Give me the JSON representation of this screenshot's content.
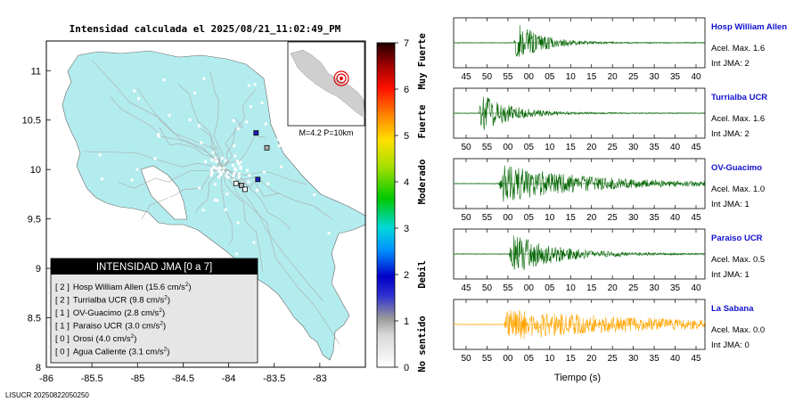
{
  "header": {
    "title": "Intensidad calculada el 2025/08/21_11:02:49_PM",
    "footer_id": "LISUCR 20250822050250"
  },
  "map": {
    "x_ticks": [
      -86,
      -85.5,
      -85,
      -84.5,
      -84,
      -83.5,
      -83
    ],
    "y_ticks": [
      8,
      8.5,
      9,
      9.5,
      10,
      10.5,
      11
    ],
    "x_range": [
      -86,
      -82.5
    ],
    "y_range": [
      8,
      11.3
    ],
    "land_color": "#b3ecee",
    "inset_label": "M=4.2 P=10km"
  },
  "scale": {
    "ticks": [
      0,
      1,
      2,
      3,
      4,
      5,
      6,
      7
    ],
    "labels": [
      {
        "text": "No sentido",
        "at": 0.5
      },
      {
        "text": "Debil",
        "at": 2.0
      },
      {
        "text": "Moderado",
        "at": 4.0
      },
      {
        "text": "Fuerte",
        "at": 5.3
      },
      {
        "text": "Muy Fuerte",
        "at": 6.6
      }
    ],
    "colors": [
      "#ffffff",
      "#9a9a9a",
      "#0000c8",
      "#00c8ff",
      "#00d000",
      "#ffe000",
      "#ff3000",
      "#200000"
    ]
  },
  "legend": {
    "title": "INTENSIDAD JMA [0 a 7]",
    "items": [
      {
        "code": "[ 2 ]",
        "name": "Hosp William Allen",
        "value": "15.6 cm/s",
        "sup": "2",
        "lon": -83.7,
        "lat": 10.37
      },
      {
        "code": "[ 2 ]",
        "name": "Turrialba UCR",
        "value": "9.8 cm/s",
        "sup": "2",
        "lon": -83.68,
        "lat": 9.9
      },
      {
        "code": "[ 1 ]",
        "name": "OV-Guacimo",
        "value": "2.8 cm/s",
        "sup": "2",
        "lon": -83.58,
        "lat": 10.22
      },
      {
        "code": "[ 1 ]",
        "name": "Paraiso UCR",
        "value": "3.0 cm/s",
        "sup": "2",
        "lon": -83.86,
        "lat": 9.84
      },
      {
        "code": "[ 0 ]",
        "name": "Orosi",
        "value": "4.0 cm/s",
        "sup": "2",
        "lon": -83.82,
        "lat": 9.8
      },
      {
        "code": "[ 0 ]",
        "name": "Agua Caliente",
        "value": "3.1 cm/s",
        "sup": "2",
        "lon": -83.92,
        "lat": 9.86
      }
    ]
  },
  "waveforms": {
    "xlabel": "Tiempo (s)",
    "panels": [
      {
        "station": "Hosp William Allen",
        "acel_label": "Acel. Max. 1.6",
        "int_label": "Int JMA: 2",
        "color": "#006400",
        "ticks": [
          "45",
          "50",
          "55",
          "00",
          "05",
          "10",
          "15",
          "20",
          "25",
          "30",
          "35",
          "40"
        ],
        "onset": 0.24,
        "decay": 0.1,
        "amp": 1.0
      },
      {
        "station": "Turrialba UCR",
        "acel_label": "Acel. Max. 1.6",
        "int_label": "Int JMA: 2",
        "color": "#006400",
        "ticks": [
          "50",
          "55",
          "00",
          "05",
          "10",
          "15",
          "20",
          "25",
          "30",
          "35",
          "40",
          "45"
        ],
        "onset": 0.1,
        "decay": 0.12,
        "amp": 0.9
      },
      {
        "station": "OV-Guacimo",
        "acel_label": "Acel. Max. 1.0",
        "int_label": "Int JMA: 1",
        "color": "#006400",
        "ticks": [
          "50",
          "55",
          "00",
          "05",
          "10",
          "15",
          "20",
          "25",
          "30",
          "35",
          "40",
          "45"
        ],
        "onset": 0.18,
        "decay": 0.35,
        "amp": 0.85
      },
      {
        "station": "Paraiso UCR",
        "acel_label": "Acel. Max. 0.5",
        "int_label": "Int JMA: 1",
        "color": "#006400",
        "ticks": [
          "45",
          "50",
          "55",
          "00",
          "05",
          "10",
          "15",
          "20",
          "25",
          "30",
          "35",
          "40"
        ],
        "onset": 0.22,
        "decay": 0.18,
        "amp": 0.95
      },
      {
        "station": "La Sabana",
        "acel_label": "Acel. Max. 0.0",
        "int_label": "Int JMA: 0",
        "color": "#ffa500",
        "ticks": [
          "50",
          "55",
          "00",
          "05",
          "10",
          "15",
          "20",
          "25",
          "30",
          "35",
          "40",
          "45"
        ],
        "onset": 0.2,
        "decay": 0.6,
        "amp": 0.7
      }
    ]
  }
}
